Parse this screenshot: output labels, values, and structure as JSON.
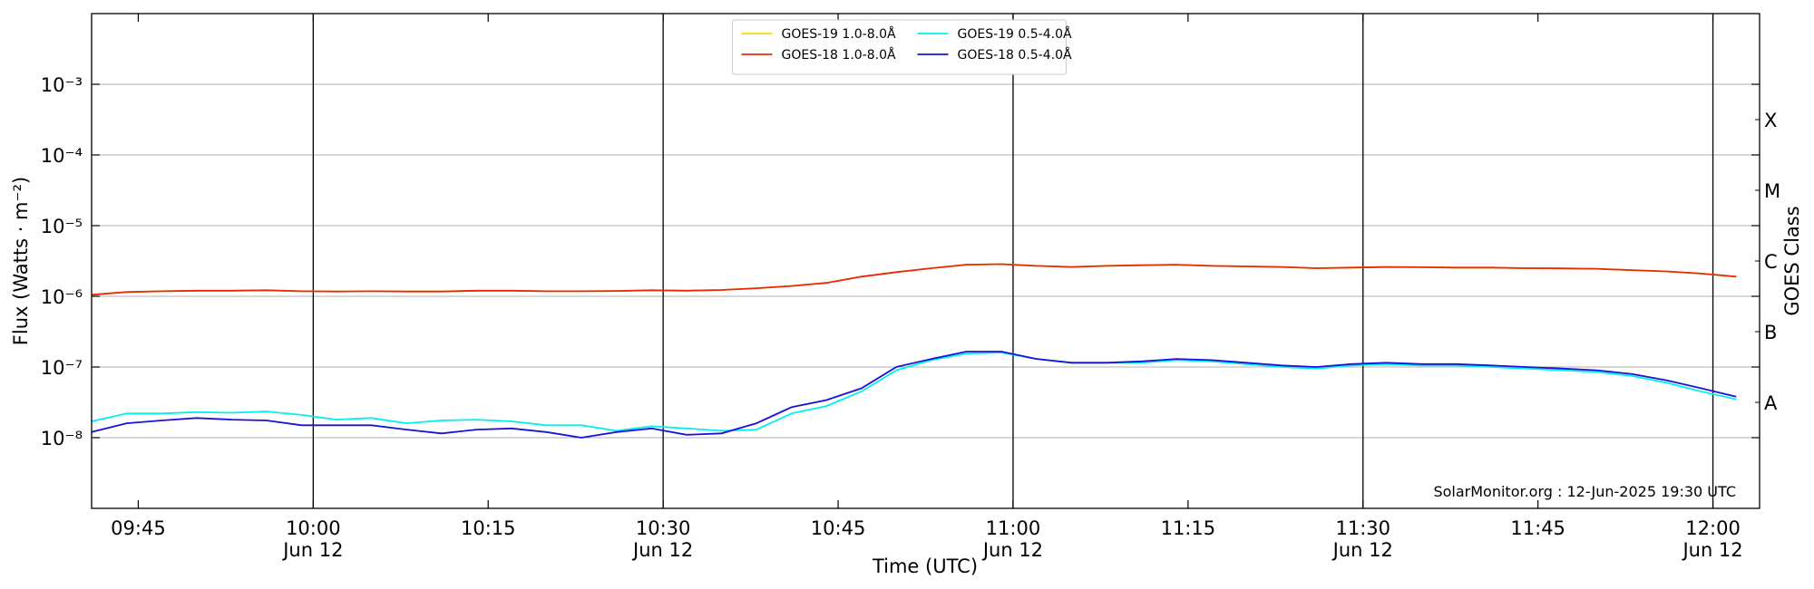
{
  "chart_data": {
    "type": "line",
    "xlabel": "Time (UTC)",
    "ylabel": "Flux (Watts · m⁻²)",
    "y2label": "GOES Class",
    "annotation": "SolarMonitor.org : 12-Jun-2025 19:30 UTC",
    "log_y": true,
    "grid": true,
    "legend": "upper center",
    "xlim": [
      "09:41",
      "12:04"
    ],
    "xticks": [
      "09:45",
      {
        "value": "10:00",
        "label": "10:00",
        "date": "Jun 12"
      },
      "10:15",
      {
        "value": "10:30",
        "label": "10:30",
        "date": "Jun 12"
      },
      "10:45",
      {
        "value": "11:00",
        "label": "11:00",
        "date": "Jun 12"
      },
      "11:15",
      {
        "value": "11:30",
        "label": "11:30",
        "date": "Jun 12"
      },
      "11:45",
      {
        "value": "12:00",
        "label": "12:00",
        "date": "Jun 12"
      }
    ],
    "ylim": [
      1e-09,
      0.01
    ],
    "yticks": [
      {
        "value": 1e-08,
        "label": "10⁻⁸"
      },
      {
        "value": 1e-07,
        "label": "10⁻⁷"
      },
      {
        "value": 1e-06,
        "label": "10⁻⁶"
      },
      {
        "value": 1e-05,
        "label": "10⁻⁵"
      },
      {
        "value": 0.0001,
        "label": "10⁻⁴"
      },
      {
        "value": 0.001,
        "label": "10⁻³"
      }
    ],
    "y2lim": [
      1e-09,
      0.01
    ],
    "y2ticks": [
      {
        "value": 3.162e-08,
        "label": "A"
      },
      {
        "value": 3.162e-07,
        "label": "B"
      },
      {
        "value": 3.162e-06,
        "label": "C"
      },
      {
        "value": 3.162e-05,
        "label": "M"
      },
      {
        "value": 0.0003162,
        "label": "X"
      }
    ],
    "x": [
      "09:41",
      "09:44",
      "09:47",
      "09:50",
      "09:53",
      "09:56",
      "09:59",
      "10:02",
      "10:05",
      "10:08",
      "10:11",
      "10:14",
      "10:17",
      "10:20",
      "10:23",
      "10:26",
      "10:29",
      "10:32",
      "10:35",
      "10:38",
      "10:41",
      "10:44",
      "10:47",
      "10:50",
      "10:53",
      "10:56",
      "10:59",
      "11:02",
      "11:05",
      "11:08",
      "11:11",
      "11:14",
      "11:17",
      "11:20",
      "11:23",
      "11:26",
      "11:29",
      "11:32",
      "11:35",
      "11:38",
      "11:41",
      "11:44",
      "11:47",
      "11:50",
      "11:53",
      "11:56",
      "11:59",
      "12:02"
    ],
    "series": [
      {
        "name": "GOES-19 1.0-8.0Å",
        "color": "#ffd700",
        "values": [
          1.05e-06,
          1.15e-06,
          1.18e-06,
          1.2e-06,
          1.2e-06,
          1.22e-06,
          1.18e-06,
          1.17e-06,
          1.18e-06,
          1.17e-06,
          1.17e-06,
          1.2e-06,
          1.2e-06,
          1.18e-06,
          1.18e-06,
          1.19e-06,
          1.22e-06,
          1.2e-06,
          1.23e-06,
          1.3e-06,
          1.4e-06,
          1.55e-06,
          1.9e-06,
          2.2e-06,
          2.5e-06,
          2.8e-06,
          2.85e-06,
          2.7e-06,
          2.6e-06,
          2.7e-06,
          2.75e-06,
          2.8e-06,
          2.7e-06,
          2.65e-06,
          2.6e-06,
          2.5e-06,
          2.55e-06,
          2.6e-06,
          2.58e-06,
          2.55e-06,
          2.55e-06,
          2.5e-06,
          2.48e-06,
          2.45e-06,
          2.35e-06,
          2.25e-06,
          2.1e-06,
          1.9e-06
        ]
      },
      {
        "name": "GOES-18 1.0-8.0Å",
        "color": "#e8290b",
        "values": [
          1.05e-06,
          1.15e-06,
          1.18e-06,
          1.2e-06,
          1.2e-06,
          1.22e-06,
          1.18e-06,
          1.17e-06,
          1.18e-06,
          1.17e-06,
          1.17e-06,
          1.2e-06,
          1.2e-06,
          1.18e-06,
          1.18e-06,
          1.19e-06,
          1.22e-06,
          1.2e-06,
          1.23e-06,
          1.3e-06,
          1.4e-06,
          1.55e-06,
          1.9e-06,
          2.2e-06,
          2.5e-06,
          2.8e-06,
          2.85e-06,
          2.7e-06,
          2.6e-06,
          2.7e-06,
          2.75e-06,
          2.8e-06,
          2.7e-06,
          2.65e-06,
          2.6e-06,
          2.5e-06,
          2.55e-06,
          2.6e-06,
          2.58e-06,
          2.55e-06,
          2.55e-06,
          2.5e-06,
          2.48e-06,
          2.45e-06,
          2.35e-06,
          2.25e-06,
          2.1e-06,
          1.9e-06
        ]
      },
      {
        "name": "GOES-19 0.5-4.0Å",
        "color": "#00f0f0",
        "values": [
          1.7e-08,
          2.2e-08,
          2.2e-08,
          2.3e-08,
          2.25e-08,
          2.35e-08,
          2.1e-08,
          1.8e-08,
          1.9e-08,
          1.6e-08,
          1.75e-08,
          1.8e-08,
          1.7e-08,
          1.5e-08,
          1.5e-08,
          1.25e-08,
          1.45e-08,
          1.35e-08,
          1.25e-08,
          1.3e-08,
          2.2e-08,
          2.8e-08,
          4.5e-08,
          9e-08,
          1.25e-07,
          1.55e-07,
          1.6e-07,
          1.3e-07,
          1.15e-07,
          1.15e-07,
          1.15e-07,
          1.25e-07,
          1.2e-07,
          1.1e-07,
          1e-07,
          9.5e-08,
          1.05e-07,
          1.1e-07,
          1.05e-07,
          1.05e-07,
          1e-07,
          9.5e-08,
          9e-08,
          8.5e-08,
          7.5e-08,
          6e-08,
          4.5e-08,
          3.5e-08
        ]
      },
      {
        "name": "GOES-18 0.5-4.0Å",
        "color": "#1a12d6",
        "values": [
          1.2e-08,
          1.6e-08,
          1.75e-08,
          1.9e-08,
          1.8e-08,
          1.75e-08,
          1.5e-08,
          1.5e-08,
          1.5e-08,
          1.3e-08,
          1.15e-08,
          1.3e-08,
          1.35e-08,
          1.2e-08,
          1e-08,
          1.2e-08,
          1.35e-08,
          1.1e-08,
          1.15e-08,
          1.6e-08,
          2.7e-08,
          3.4e-08,
          5e-08,
          1e-07,
          1.3e-07,
          1.65e-07,
          1.65e-07,
          1.3e-07,
          1.15e-07,
          1.15e-07,
          1.2e-07,
          1.3e-07,
          1.25e-07,
          1.15e-07,
          1.05e-07,
          1e-07,
          1.1e-07,
          1.15e-07,
          1.1e-07,
          1.1e-07,
          1.05e-07,
          1e-07,
          9.5e-08,
          9e-08,
          8e-08,
          6.5e-08,
          5e-08,
          3.8e-08
        ]
      }
    ]
  }
}
